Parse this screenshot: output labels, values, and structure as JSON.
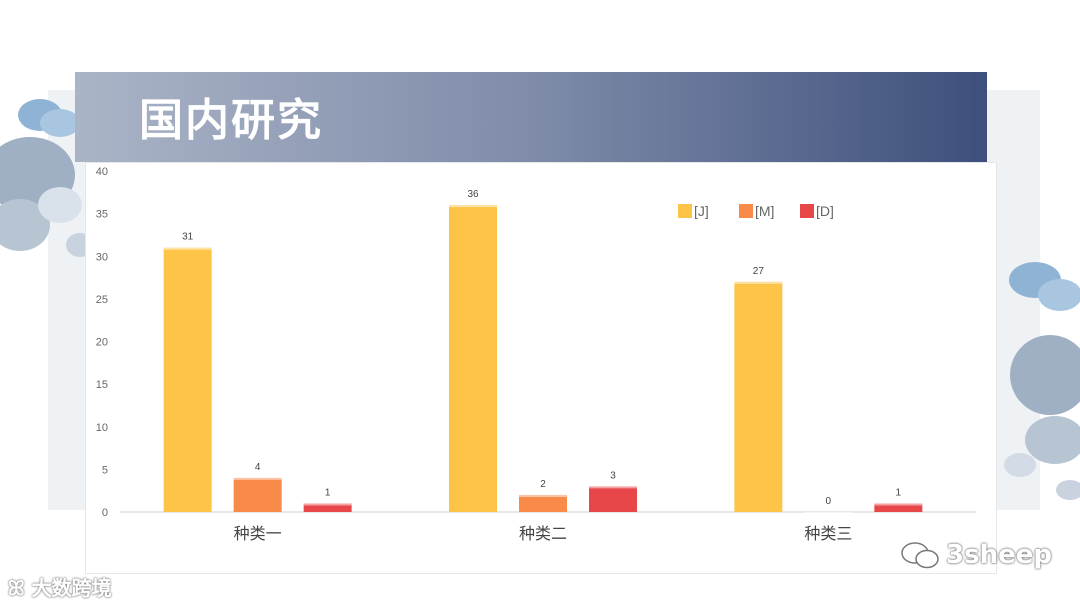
{
  "slide": {
    "title": "国内研究"
  },
  "chart_data": {
    "type": "bar",
    "categories": [
      "种类一",
      "种类二",
      "种类三"
    ],
    "series": [
      {
        "name": "[J]",
        "values": [
          31,
          36,
          27
        ],
        "color": "#fdc448"
      },
      {
        "name": "[M]",
        "values": [
          4,
          2,
          0
        ],
        "color": "#f88a4a"
      },
      {
        "name": "[D]",
        "values": [
          1,
          3,
          1
        ],
        "color": "#e8474a"
      }
    ],
    "ylim": [
      0,
      40
    ],
    "yticks": [
      0,
      5,
      10,
      15,
      20,
      25,
      30,
      35,
      40
    ],
    "grid": false,
    "legend": "top-right",
    "data_labels": true
  },
  "watermarks": {
    "left": "大数跨境",
    "right": "3sheep"
  }
}
